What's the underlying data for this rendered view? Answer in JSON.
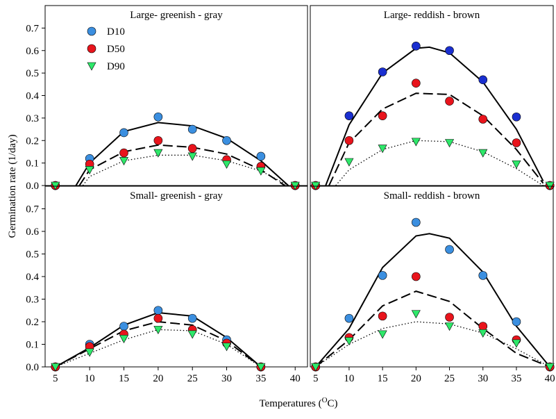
{
  "ylabel": "Germination rate (1/day)",
  "xlabel": [
    "Temperatures (",
    "O",
    "C)"
  ],
  "chart_data": [
    {
      "type": "scatter",
      "title": "Large- greenish - gray",
      "legend": "upper left",
      "x": [
        5,
        10,
        15,
        20,
        25,
        30,
        35,
        40
      ],
      "series": [
        {
          "name": "D10",
          "color": "#3b8fe0",
          "marker": "circle",
          "values": [
            0,
            0.12,
            0.235,
            0.305,
            0.25,
            0.2,
            0.13,
            0
          ]
        },
        {
          "name": "D50",
          "color": "#e8141c",
          "marker": "circle",
          "values": [
            0,
            0.095,
            0.145,
            0.2,
            0.165,
            0.115,
            0.085,
            0
          ]
        },
        {
          "name": "D90",
          "color": "#2ee86a",
          "marker": "triangle-down",
          "values": [
            0,
            0.07,
            0.11,
            0.145,
            0.13,
            0.095,
            0.065,
            0
          ]
        }
      ],
      "fits": [
        {
          "style": "solid",
          "x": [
            8,
            10,
            15,
            20,
            25,
            30,
            35,
            39
          ],
          "values": [
            0,
            0.1,
            0.24,
            0.28,
            0.265,
            0.21,
            0.11,
            0
          ]
        },
        {
          "style": "dashed",
          "x": [
            8.5,
            10,
            15,
            20,
            25,
            30,
            35,
            38.5
          ],
          "values": [
            0,
            0.07,
            0.15,
            0.18,
            0.17,
            0.14,
            0.07,
            0
          ]
        },
        {
          "style": "dotted",
          "x": [
            9,
            10,
            15,
            20,
            25,
            30,
            35,
            39
          ],
          "values": [
            0,
            0.04,
            0.11,
            0.135,
            0.135,
            0.11,
            0.065,
            0
          ]
        }
      ],
      "xlim": [
        3.5,
        41.8
      ],
      "ylim": [
        0,
        0.8
      ],
      "yticks": [
        {
          "value": 0,
          "label": "0.0"
        },
        0.1,
        0.2,
        0.3,
        0.4,
        0.5,
        0.6,
        0.7
      ]
    },
    {
      "type": "scatter",
      "title": "Large- reddish - brown",
      "x": [
        5,
        10,
        15,
        20,
        25,
        30,
        35,
        40
      ],
      "series": [
        {
          "color": "#1a2fd0",
          "marker": "circle",
          "values": [
            0,
            0.31,
            0.505,
            0.62,
            0.6,
            0.47,
            0.305,
            0
          ]
        },
        {
          "color": "#e8141c",
          "marker": "circle",
          "values": [
            0,
            0.2,
            0.31,
            0.455,
            0.375,
            0.295,
            0.19,
            0
          ]
        },
        {
          "color": "#2ee86a",
          "marker": "triangle-down",
          "values": [
            0,
            0.105,
            0.165,
            0.195,
            0.19,
            0.145,
            0.095,
            0
          ]
        }
      ],
      "fits": [
        {
          "style": "solid",
          "x": [
            6.5,
            10,
            15,
            20,
            22,
            25,
            30,
            35,
            39
          ],
          "values": [
            0,
            0.27,
            0.5,
            0.61,
            0.615,
            0.59,
            0.46,
            0.25,
            0.02
          ]
        },
        {
          "style": "dashed",
          "x": [
            7,
            10,
            15,
            20,
            25,
            30,
            35,
            39
          ],
          "values": [
            0,
            0.19,
            0.34,
            0.41,
            0.405,
            0.31,
            0.16,
            0.01
          ]
        },
        {
          "style": "dotted",
          "x": [
            8,
            10,
            15,
            20,
            25,
            30,
            35,
            39
          ],
          "values": [
            0,
            0.07,
            0.16,
            0.2,
            0.195,
            0.15,
            0.075,
            0
          ]
        }
      ],
      "xlim": [
        4.2,
        40.5
      ],
      "ylim": [
        0,
        0.8
      ]
    },
    {
      "type": "scatter",
      "title": "Small- greenish - gray",
      "x": [
        5,
        10,
        15,
        20,
        25,
        30,
        35
      ],
      "series": [
        {
          "color": "#3b8fe0",
          "marker": "circle",
          "values": [
            0,
            0.1,
            0.18,
            0.25,
            0.215,
            0.12,
            0
          ]
        },
        {
          "color": "#e8141c",
          "marker": "circle",
          "values": [
            0,
            0.09,
            0.145,
            0.215,
            0.165,
            0.105,
            0
          ]
        },
        {
          "color": "#2ee86a",
          "marker": "triangle-down",
          "values": [
            0,
            0.065,
            0.125,
            0.165,
            0.145,
            0.09,
            0
          ]
        }
      ],
      "fits": [
        {
          "style": "solid",
          "x": [
            5,
            10,
            15,
            20,
            25,
            30,
            35
          ],
          "values": [
            0,
            0.085,
            0.185,
            0.24,
            0.225,
            0.13,
            0
          ]
        },
        {
          "style": "dashed",
          "x": [
            5,
            10,
            15,
            20,
            25,
            30,
            35
          ],
          "values": [
            0,
            0.08,
            0.16,
            0.2,
            0.185,
            0.115,
            0
          ]
        },
        {
          "style": "dotted",
          "x": [
            5,
            10,
            15,
            20,
            25,
            30,
            35
          ],
          "values": [
            0,
            0.06,
            0.12,
            0.165,
            0.16,
            0.1,
            0
          ]
        }
      ],
      "xlim": [
        3.5,
        41.8
      ],
      "ylim": [
        0,
        0.8
      ],
      "xticks": [
        5,
        10,
        15,
        20,
        25,
        30,
        35,
        40
      ],
      "yticks": [
        {
          "value": 0,
          "label": "0.0"
        },
        0.1,
        0.2,
        0.3,
        0.4,
        0.5,
        0.6,
        0.7
      ]
    },
    {
      "type": "scatter",
      "title": "Small- reddish - brown",
      "x": [
        5,
        10,
        15,
        20,
        25,
        30,
        35,
        40
      ],
      "series": [
        {
          "color": "#3b8fe0",
          "marker": "circle",
          "values": [
            0,
            0.215,
            0.405,
            0.64,
            0.52,
            0.405,
            0.2,
            0
          ]
        },
        {
          "color": "#e8141c",
          "marker": "circle",
          "values": [
            0,
            0.13,
            0.225,
            0.4,
            0.22,
            0.18,
            0.12,
            0
          ]
        },
        {
          "color": "#2ee86a",
          "marker": "triangle-down",
          "values": [
            0,
            0.115,
            0.145,
            0.235,
            0.18,
            0.15,
            0.105,
            0
          ]
        }
      ],
      "fits": [
        {
          "style": "solid",
          "x": [
            5,
            10,
            15,
            20,
            22,
            25,
            30,
            35,
            40
          ],
          "values": [
            0,
            0.17,
            0.44,
            0.58,
            0.59,
            0.57,
            0.42,
            0.18,
            0
          ]
        },
        {
          "style": "dashed",
          "x": [
            5,
            10,
            15,
            20,
            25,
            30,
            35,
            40
          ],
          "values": [
            0,
            0.12,
            0.27,
            0.335,
            0.29,
            0.17,
            0.06,
            0
          ]
        },
        {
          "style": "dotted",
          "x": [
            5,
            10,
            15,
            20,
            25,
            30,
            35,
            40
          ],
          "values": [
            0,
            0.1,
            0.17,
            0.2,
            0.19,
            0.15,
            0.08,
            0
          ]
        }
      ],
      "xlim": [
        4.2,
        40.5
      ],
      "ylim": [
        0,
        0.8
      ],
      "xticks": [
        5,
        10,
        15,
        20,
        25,
        30,
        35,
        40
      ]
    }
  ]
}
